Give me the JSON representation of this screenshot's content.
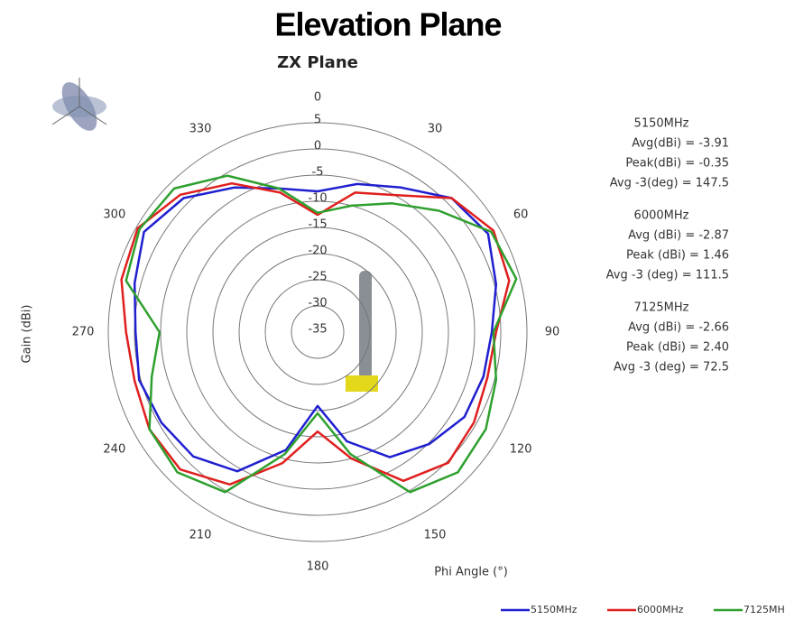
{
  "chart_data": {
    "type": "polar",
    "title": "Elevation Plane",
    "subtitle": "ZX Plane",
    "rlabel": "Gain (dBi)",
    "thetalabel": "Phi Angle (°)",
    "rlim": [
      -35,
      5
    ],
    "rticks": [
      -35,
      -30,
      -25,
      -20,
      -15,
      -10,
      -5,
      0,
      5
    ],
    "thetaticks": [
      0,
      30,
      60,
      90,
      120,
      150,
      180,
      210,
      240,
      270,
      300,
      330
    ],
    "theta": [
      0,
      15,
      30,
      45,
      60,
      75,
      90,
      105,
      120,
      135,
      150,
      165,
      180,
      195,
      210,
      225,
      240,
      255,
      270,
      285,
      300,
      315,
      330,
      345
    ],
    "series": [
      {
        "name": "5150MHz",
        "color": "#1f1fd0",
        "values": [
          -8.1,
          -5.7,
          -3.1,
          1.2,
          2.6,
          0.3,
          -1.7,
          -2.2,
          -2.6,
          -4.8,
          -7.4,
          -13.4,
          -20.9,
          -11.7,
          -4.3,
          -1.4,
          -0.5,
          0.3,
          -0.2,
          1.2,
          3.3,
          1.2,
          -3.1,
          -6.6
        ]
      },
      {
        "name": "6000MHz",
        "color": "#e01f1f",
        "values": [
          -12.6,
          -7.4,
          -4.8,
          1.2,
          3.8,
          2.9,
          -0.9,
          -1.4,
          -0.5,
          0.3,
          -2.2,
          -10,
          -16,
          -9.1,
          -1.4,
          2.1,
          2.1,
          1.2,
          1.6,
          3.8,
          4.7,
          2.1,
          -2.2,
          -7.4
        ]
      },
      {
        "name": "7125MHz",
        "color": "#2ea02e",
        "values": [
          -12.2,
          -10,
          -6.6,
          -2.2,
          3.3,
          4.3,
          -1.4,
          0.3,
          2.1,
          2.9,
          0.3,
          -10.9,
          -19.5,
          -10.9,
          0.3,
          2.9,
          2.1,
          -2.2,
          -4.8,
          2.9,
          4.3,
          3.8,
          -0.5,
          -6.6
        ]
      }
    ],
    "annotations": [
      [
        "5150MHz",
        "Avg(dBi) = -3.91",
        "Peak(dBi) = -0.35",
        "Avg -3(deg) = 147.5"
      ],
      [
        "6000MHz",
        "Avg (dBi) =  -2.87",
        "Peak (dBi) =  1.46",
        "Avg -3 (deg) =  111.5"
      ],
      [
        "7125MHz",
        "Avg (dBi) = -2.66",
        "Peak (dBi) = 2.40",
        "Avg -3 (deg) = 72.5"
      ]
    ]
  }
}
